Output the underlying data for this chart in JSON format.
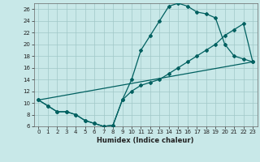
{
  "xlabel": "Humidex (Indice chaleur)",
  "background_color": "#c8e8e8",
  "line_color": "#006060",
  "grid_color": "#a0c8c8",
  "xlim": [
    -0.5,
    23.5
  ],
  "ylim": [
    6,
    27
  ],
  "xticks": [
    0,
    1,
    2,
    3,
    4,
    5,
    6,
    7,
    8,
    9,
    10,
    11,
    12,
    13,
    14,
    15,
    16,
    17,
    18,
    19,
    20,
    21,
    22,
    23
  ],
  "yticks": [
    6,
    8,
    10,
    12,
    14,
    16,
    18,
    20,
    22,
    24,
    26
  ],
  "line1_x": [
    0,
    1,
    2,
    3,
    4,
    5,
    6,
    7,
    8,
    9,
    10,
    11,
    12,
    13,
    14,
    15,
    16,
    17,
    18,
    19,
    20,
    21,
    22,
    23
  ],
  "line1_y": [
    10.5,
    9.5,
    8.5,
    8.5,
    8.0,
    7.0,
    6.5,
    6.0,
    6.2,
    10.5,
    14.0,
    19.0,
    21.5,
    24.0,
    26.5,
    27.0,
    26.5,
    25.5,
    25.2,
    24.5,
    20.0,
    18.0,
    17.5,
    17.0
  ],
  "line2_x": [
    0,
    1,
    2,
    3,
    4,
    5,
    6,
    7,
    8,
    9,
    10,
    11,
    12,
    13,
    14,
    15,
    16,
    17,
    18,
    19,
    20,
    21,
    22,
    23
  ],
  "line2_y": [
    10.5,
    9.5,
    8.5,
    8.5,
    8.0,
    7.0,
    6.5,
    6.0,
    6.2,
    10.5,
    12.0,
    13.0,
    13.5,
    14.0,
    15.0,
    16.0,
    17.0,
    18.0,
    19.0,
    20.0,
    21.5,
    22.5,
    23.5,
    17.0
  ],
  "line3_x": [
    0,
    23
  ],
  "line3_y": [
    10.5,
    17.0
  ]
}
